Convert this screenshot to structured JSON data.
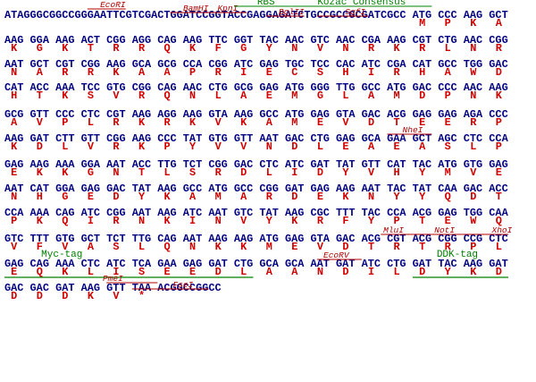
{
  "lines": [
    {
      "sequence": "ATAGGGCGGCCGGGAATTCGTCGACTGGATCCGGTACCGAGGAGATCTGCCGCCGCGATCGCC ATG CCC AAG GCT",
      "translation": [
        "M",
        "P",
        "K",
        "A"
      ],
      "annotations": [
        {
          "label": "EcoRI",
          "color": "#b00000"
        },
        {
          "label": "BamHI",
          "color": "#b00000"
        },
        {
          "label": "KpnI",
          "color": "#b00000"
        },
        {
          "label": "RBS",
          "color": "#008000"
        },
        {
          "label": "BglII",
          "color": "#b00000"
        },
        {
          "label": "Kozac Consensus",
          "color": "#008000"
        },
        {
          "label": "SgfI",
          "color": "#b00000"
        }
      ]
    },
    {
      "sequence": "AAG GGA AAG ACT CGG AGG CAG AAG TTC GGT TAC AAC GTC AAC CGA AAG CGT CTG AAC CGG",
      "translation": [
        "K",
        "G",
        "K",
        "T",
        "R",
        "R",
        "Q",
        "K",
        "F",
        "G",
        "Y",
        "N",
        "V",
        "N",
        "R",
        "K",
        "R",
        "L",
        "N",
        "R"
      ],
      "annotations": []
    },
    {
      "sequence": "AAT GCT CGT CGG AAG GCA GCG CCA CGG ATC GAG TGC TCC CAC ATC CGA CAT GCC TGG GAC",
      "translation": [
        "N",
        "A",
        "R",
        "R",
        "K",
        "A",
        "A",
        "P",
        "R",
        "I",
        "E",
        "C",
        "S",
        "H",
        "I",
        "R",
        "H",
        "A",
        "W",
        "D"
      ],
      "annotations": []
    },
    {
      "sequence": "CAT ACC AAA TCC GTG CGG CAG AAC CTG GCG GAG ATG GGG TTG GCC ATG GAC CCC AAC AAG",
      "translation": [
        "H",
        "T",
        "K",
        "S",
        "V",
        "R",
        "Q",
        "N",
        "L",
        "A",
        "E",
        "M",
        "G",
        "L",
        "A",
        "M",
        "D",
        "P",
        "N",
        "K"
      ],
      "annotations": []
    },
    {
      "sequence": "GCG GTT CCC CTC CGT AAG AGG AAG GTA AAG GCC ATG GAG GTA GAC ACG GAG GAG AGA CCC",
      "translation": [
        "A",
        "V",
        "P",
        "L",
        "R",
        "K",
        "R",
        "K",
        "V",
        "K",
        "A",
        "M",
        "E",
        "V",
        "D",
        "T",
        "E",
        "E",
        "R",
        "P"
      ],
      "annotations": []
    },
    {
      "sequence": "AAG GAT CTT GTT CGG AAG CCC TAT GTG GTT AAT GAC CTG GAG GCA GAA GCT AGC CTC CCA",
      "translation": [
        "K",
        "D",
        "L",
        "V",
        "R",
        "K",
        "P",
        "Y",
        "V",
        "V",
        "N",
        "D",
        "L",
        "E",
        "A",
        "E",
        "A",
        "S",
        "L",
        "P"
      ],
      "annotations": [
        {
          "label": "NheI",
          "color": "#b00000"
        }
      ]
    },
    {
      "sequence": "GAG AAG AAA GGA AAT ACC TTG TCT CGG GAC CTC ATC GAT TAT GTT CAT TAC ATG GTG GAG",
      "translation": [
        "E",
        "K",
        "K",
        "G",
        "N",
        "T",
        "L",
        "S",
        "R",
        "D",
        "L",
        "I",
        "D",
        "Y",
        "V",
        "H",
        "Y",
        "M",
        "V",
        "E"
      ],
      "annotations": []
    },
    {
      "sequence": "AAT CAT GGA GAG GAC TAT AAG GCC ATG GCC CGG GAT GAG AAG AAT TAC TAT CAA GAC ACC",
      "translation": [
        "N",
        "H",
        "G",
        "E",
        "D",
        "Y",
        "K",
        "A",
        "M",
        "A",
        "R",
        "D",
        "E",
        "K",
        "N",
        "Y",
        "Y",
        "Q",
        "D",
        "T"
      ],
      "annotations": []
    },
    {
      "sequence": "CCA AAA CAG ATC CGG AAT AAG ATC AAT GTC TAT AAG CGC TTT TAC CCA ACG GAG TGG CAA",
      "translation": [
        "P",
        "K",
        "Q",
        "I",
        "R",
        "N",
        "K",
        "I",
        "N",
        "V",
        "Y",
        "K",
        "R",
        "F",
        "Y",
        "P",
        "T",
        "E",
        "W",
        "Q"
      ],
      "annotations": []
    },
    {
      "sequence": "GTC TTT GTG GCT TCT TTG CAG AAT AAG AAG ATG GAG GTA GAC ACG CGT ACG CGG CCG CTC",
      "translation": [
        "V",
        "F",
        "V",
        "A",
        "S",
        "L",
        "Q",
        "N",
        "K",
        "K",
        "M",
        "E",
        "V",
        "D",
        "T",
        "R",
        "T",
        "R",
        "P",
        "L"
      ],
      "annotations": [
        {
          "label": "MluI",
          "color": "#b00000"
        },
        {
          "label": "NotI",
          "color": "#b00000"
        },
        {
          "label": "XhoI",
          "color": "#b00000"
        }
      ]
    },
    {
      "sequence": "GAG CAG AAA CTC ATC TCA GAA GAG GAT CTG GCA GCA AAT GAT ATC CTG GAT TAC AAG GAT",
      "translation": [
        "E",
        "Q",
        "K",
        "L",
        "I",
        "S",
        "E",
        "E",
        "D",
        "L",
        "A",
        "A",
        "N",
        "D",
        "I",
        "L",
        "D",
        "Y",
        "K",
        "D"
      ],
      "annotations": [
        {
          "label": "Myc-tag",
          "color": "#008000"
        },
        {
          "label": "EcoRV",
          "color": "#b00000"
        },
        {
          "label": "DDK-tag",
          "color": "#008000"
        }
      ]
    },
    {
      "sequence": "GAC GAC GAT AAG GTT TAA ACGGCCGGCC",
      "translation": [
        "D",
        "D",
        "D",
        "K",
        "V",
        "*"
      ],
      "annotations": [
        {
          "label": "PmeI",
          "color": "#b00000"
        },
        {
          "label": "FseI",
          "color": "#b00000"
        }
      ]
    }
  ]
}
